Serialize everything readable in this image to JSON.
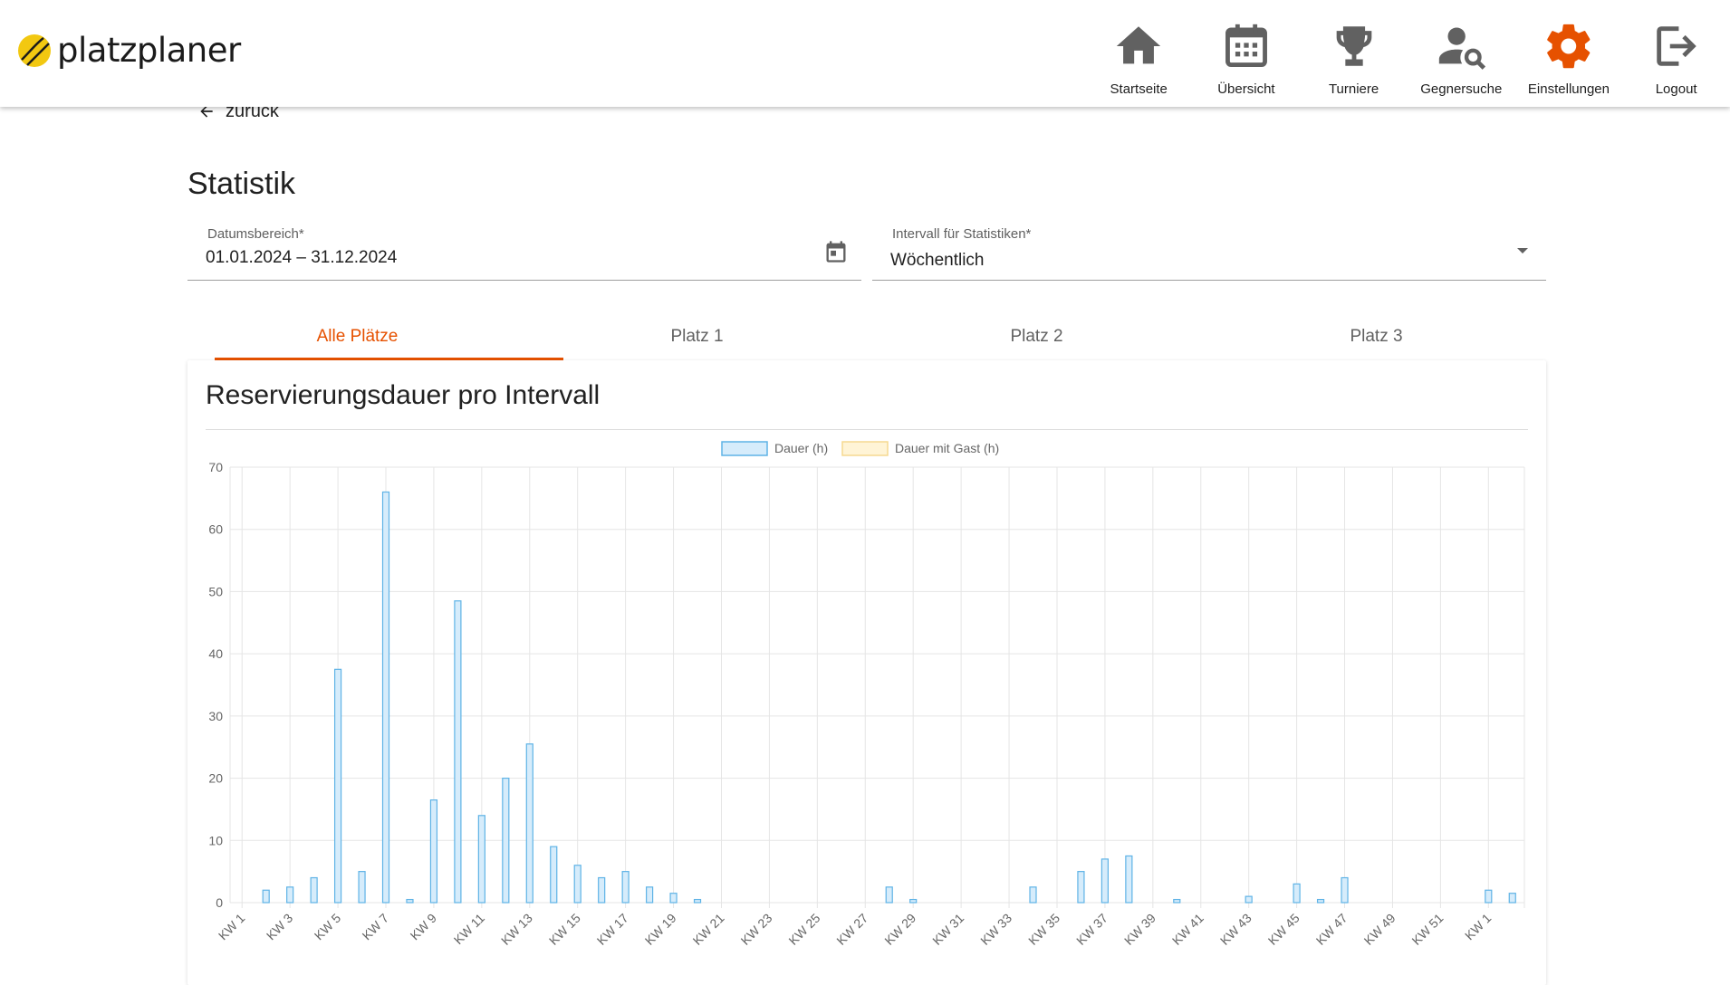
{
  "app": {
    "name": "platzplaner"
  },
  "nav": [
    {
      "id": "home",
      "label": "Startseite",
      "icon": "home-icon"
    },
    {
      "id": "overview",
      "label": "Übersicht",
      "icon": "calendar-icon"
    },
    {
      "id": "tournaments",
      "label": "Turniere",
      "icon": "trophy-icon"
    },
    {
      "id": "opponents",
      "label": "Gegnersuche",
      "icon": "person-search-icon"
    },
    {
      "id": "settings",
      "label": "Einstellungen",
      "icon": "gear-icon"
    },
    {
      "id": "logout",
      "label": "Logout",
      "icon": "logout-icon"
    }
  ],
  "colors": {
    "accent": "#e65100",
    "nav_icon": "#616161",
    "bar_fill": "#d6ecfb",
    "bar_border": "#5fb3e6",
    "guest_fill": "#fff4d6",
    "guest_border": "#f5d990",
    "logo_ball": "#f2c811"
  },
  "back": {
    "label": "zurück"
  },
  "page": {
    "title": "Statistik"
  },
  "filters": {
    "date_label": "Datumsbereich*",
    "date_value": "01.01.2024 – 31.12.2024",
    "interval_label": "Intervall für Statistiken*",
    "interval_value": "Wöchentlich"
  },
  "tabs": [
    {
      "label": "Alle Plätze",
      "active": true
    },
    {
      "label": "Platz 1",
      "active": false
    },
    {
      "label": "Platz 2",
      "active": false
    },
    {
      "label": "Platz 3",
      "active": false
    }
  ],
  "card": {
    "title": "Reservierungsdauer pro Intervall"
  },
  "chart_data": {
    "type": "bar",
    "legend": {
      "position": "top"
    },
    "series": [
      {
        "name": "Dauer (h)",
        "values": [
          0,
          2,
          2.5,
          4,
          37.5,
          5,
          66,
          0.5,
          16.5,
          48.5,
          14,
          20,
          25.5,
          9,
          6,
          4,
          5,
          2.5,
          1.5,
          0.5,
          0,
          0,
          0,
          0,
          0,
          0,
          0,
          2.5,
          0.5,
          0,
          0,
          0,
          0,
          2.5,
          0,
          5,
          7,
          7.5,
          0,
          0.5,
          0,
          0,
          1,
          0,
          3,
          0.5,
          4,
          0,
          0,
          0,
          0,
          0,
          2,
          1.5
        ]
      },
      {
        "name": "Dauer mit Gast (h)",
        "values": [
          0,
          0,
          0,
          0,
          0,
          0,
          0,
          0,
          0,
          0,
          0,
          0,
          0,
          0,
          0,
          0,
          0,
          0,
          0,
          0,
          0,
          0,
          0,
          0,
          0,
          0,
          0,
          0,
          0,
          0,
          0,
          0,
          0,
          0,
          0,
          0,
          0,
          0,
          0,
          0,
          0,
          0,
          0,
          0,
          0,
          0,
          0,
          0,
          0,
          0,
          0,
          0,
          0,
          0
        ]
      }
    ],
    "x_tick_labels": [
      "KW 1",
      "KW 3",
      "KW 5",
      "KW 7",
      "KW 9",
      "KW 11",
      "KW 13",
      "KW 15",
      "KW 17",
      "KW 19",
      "KW 21",
      "KW 23",
      "KW 25",
      "KW 27",
      "KW 29",
      "KW 31",
      "KW 33",
      "KW 35",
      "KW 37",
      "KW 39",
      "KW 41",
      "KW 43",
      "KW 45",
      "KW 47",
      "KW 49",
      "KW 51",
      "KW 1"
    ],
    "ylim": [
      0,
      70
    ],
    "y_ticks": [
      0,
      10,
      20,
      30,
      40,
      50,
      60,
      70
    ],
    "grid": true
  }
}
